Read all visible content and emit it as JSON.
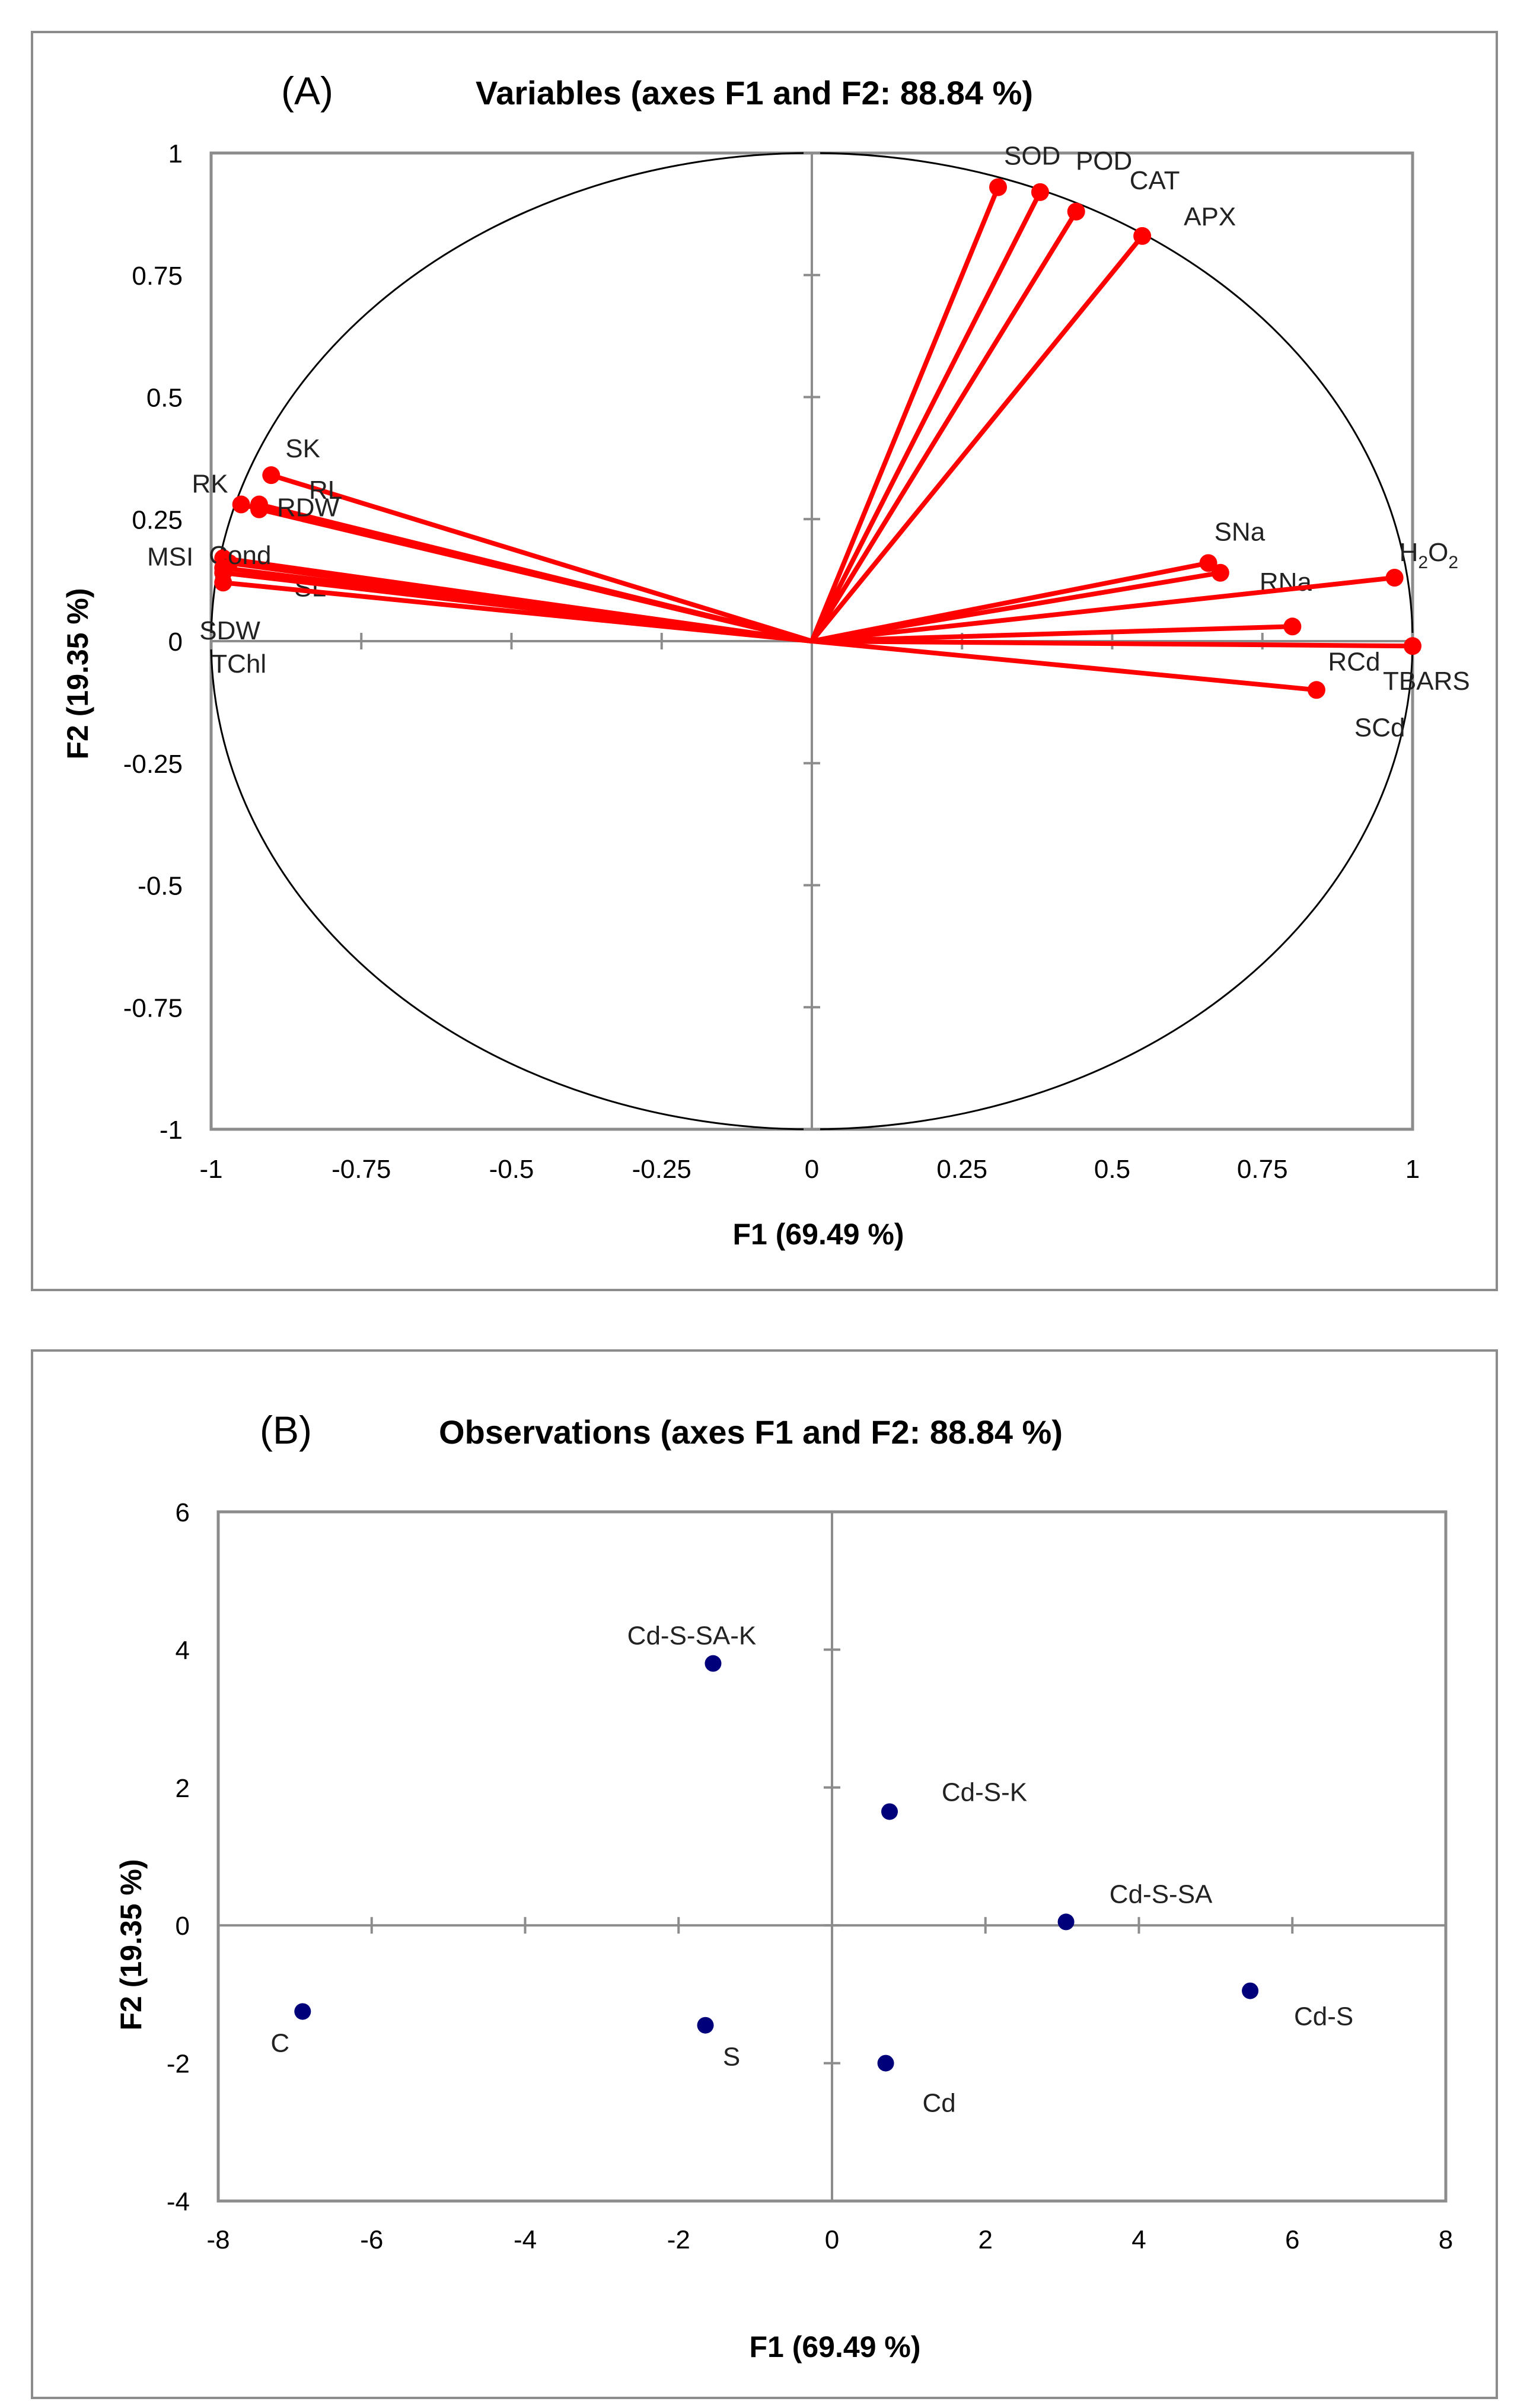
{
  "chart_data": [
    {
      "type": "scatter",
      "subtype": "correlation-circle",
      "panel_label": "(A)",
      "title": "Variables (axes F1 and F2: 88.84 %)",
      "xlabel": "F1 (69.49 %)",
      "ylabel": "F2 (19.35 %)",
      "xlim": [
        -1,
        1
      ],
      "ylim": [
        -1,
        1
      ],
      "xticks": [
        "-1",
        "-0.75",
        "-0.5",
        "-0.25",
        "0",
        "0.25",
        "0.5",
        "0.75",
        "1"
      ],
      "yticks": [
        "1",
        "0.75",
        "0.5",
        "0.25",
        "0",
        "-0.25",
        "-0.5",
        "-0.75",
        "-1"
      ],
      "point_color": "#ff0000",
      "circle_color": "#000000",
      "variables": [
        {
          "name": "SOD",
          "x": 0.31,
          "y": 0.93
        },
        {
          "name": "POD",
          "x": 0.38,
          "y": 0.92
        },
        {
          "name": "CAT",
          "x": 0.44,
          "y": 0.88
        },
        {
          "name": "APX",
          "x": 0.55,
          "y": 0.83
        },
        {
          "name": "SNa",
          "x": 0.66,
          "y": 0.16
        },
        {
          "name": "RNa",
          "x": 0.68,
          "y": 0.14
        },
        {
          "name": "H2O2",
          "x": 0.97,
          "y": 0.13
        },
        {
          "name": "RCd",
          "x": 0.8,
          "y": 0.03
        },
        {
          "name": "TBARS",
          "x": 1.0,
          "y": -0.01
        },
        {
          "name": "SCd",
          "x": 0.84,
          "y": -0.1
        },
        {
          "name": "SK",
          "x": -0.9,
          "y": 0.34
        },
        {
          "name": "RL",
          "x": -0.92,
          "y": 0.27
        },
        {
          "name": "RK",
          "x": -0.95,
          "y": 0.28
        },
        {
          "name": "RDW",
          "x": -0.92,
          "y": 0.28
        },
        {
          "name": "SL",
          "x": -0.97,
          "y": 0.16
        },
        {
          "name": "Cond",
          "x": -0.98,
          "y": 0.17
        },
        {
          "name": "MSI",
          "x": -0.98,
          "y": 0.15
        },
        {
          "name": "SDW",
          "x": -0.98,
          "y": 0.14
        },
        {
          "name": "TChl",
          "x": -0.98,
          "y": 0.12
        }
      ]
    },
    {
      "type": "scatter",
      "panel_label": "(B)",
      "title": "Observations (axes F1 and F2: 88.84 %)",
      "xlabel": "F1 (69.49 %)",
      "ylabel": "F2 (19.35 %)",
      "xlim": [
        -8,
        8
      ],
      "ylim": [
        -4,
        6
      ],
      "xticks": [
        "-8",
        "-6",
        "-4",
        "-2",
        "0",
        "2",
        "4",
        "6",
        "8"
      ],
      "yticks": [
        "6",
        "4",
        "2",
        "0",
        "-2",
        "-4"
      ],
      "point_color": "#00007a",
      "observations": [
        {
          "name": "C",
          "x": -6.9,
          "y": -1.25
        },
        {
          "name": "S",
          "x": -1.65,
          "y": -1.45
        },
        {
          "name": "Cd",
          "x": 0.7,
          "y": -2.0
        },
        {
          "name": "Cd-S-SA-K",
          "x": -1.55,
          "y": 3.8
        },
        {
          "name": "Cd-S-K",
          "x": 0.75,
          "y": 1.65
        },
        {
          "name": "Cd-S-SA",
          "x": 3.05,
          "y": 0.05
        },
        {
          "name": "Cd-S",
          "x": 5.45,
          "y": -0.95
        }
      ]
    }
  ]
}
